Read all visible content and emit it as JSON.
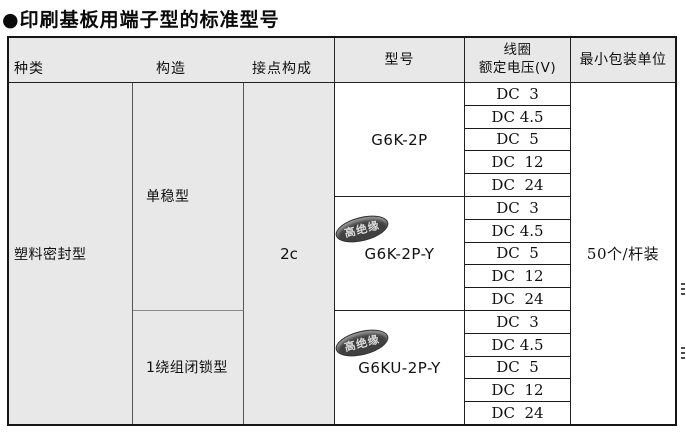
{
  "title": "●印刷基板用端子型的标准型号",
  "table": {
    "headers": {
      "kind": "种类",
      "structure": "构造",
      "contact": "接点构成",
      "model": "型号",
      "coil_line1": "线圈",
      "coil_line2": "额定电压(V)",
      "packaging": "最小包装单位"
    },
    "kind_value": "塑料密封型",
    "contact_value": "2c",
    "structures": [
      {
        "label": "单稳型"
      },
      {
        "label": "1绕组闭锁型"
      }
    ],
    "groups": [
      {
        "model": "G6K-2P",
        "voltages": [
          "DC  3",
          "DC 4.5",
          "DC  5",
          "DC  12",
          "DC  24"
        ]
      },
      {
        "model": "G6K-2P-Y",
        "badge": "高绝缘",
        "voltages": [
          "DC  3",
          "DC 4.5",
          "DC  5",
          "DC  12",
          "DC  24"
        ]
      },
      {
        "model": "G6KU-2P-Y",
        "badge": "高绝缘",
        "voltages": [
          "DC  3",
          "DC 4.5",
          "DC  5",
          "DC  12",
          "DC  24"
        ]
      }
    ],
    "packaging_value": "50个/杆装"
  },
  "colors": {
    "cell_gray": "#e8e8e8",
    "badge_bg": "#404040",
    "badge_text": "#d9d9d9",
    "border_dark": "#222222"
  }
}
